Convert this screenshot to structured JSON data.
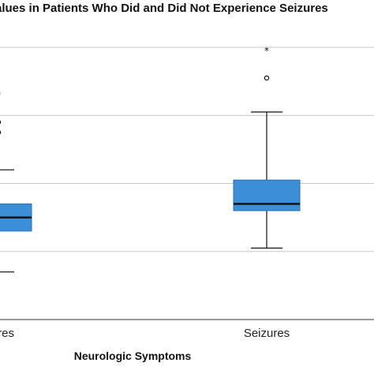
{
  "chart_data": {
    "type": "box",
    "title": "alues in Patients Who Did and Did Not Experience Seizures",
    "xlabel": "Neurologic Symptoms",
    "ylabel": "",
    "categories": [
      "izures",
      "Seizures"
    ],
    "ylim": [
      0,
      4.2
    ],
    "gridlines": [
      1,
      2,
      3,
      4
    ],
    "grid": true,
    "box_color": "#3a8fd6",
    "boxes": [
      {
        "category": "izures",
        "whisker_low": 0.7,
        "q1": 1.3,
        "median": 1.5,
        "q3": 1.7,
        "whisker_high": 2.2,
        "outliers": [
          {
            "value": 2.75,
            "marker": "circle"
          },
          {
            "value": 2.9,
            "marker": "circle"
          },
          {
            "value": 3.3,
            "marker": "star"
          }
        ]
      },
      {
        "category": "Seizures",
        "whisker_low": 1.05,
        "q1": 1.6,
        "median": 1.7,
        "q3": 2.05,
        "whisker_high": 3.05,
        "outliers": [
          {
            "value": 3.55,
            "marker": "circle"
          },
          {
            "value": 3.95,
            "marker": "star"
          }
        ]
      }
    ]
  }
}
